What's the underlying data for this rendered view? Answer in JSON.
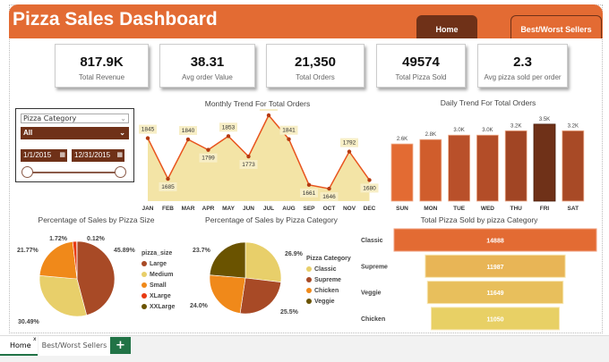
{
  "header": {
    "title": "Pizza Sales Dashboard",
    "tabs": [
      {
        "label": "Home",
        "active": true
      },
      {
        "label": "Best/Worst Sellers",
        "active": false
      }
    ]
  },
  "kpis": [
    {
      "value": "817.9K",
      "label": "Total Revenue"
    },
    {
      "value": "38.31",
      "label": "Avg order Value"
    },
    {
      "value": "21,350",
      "label": "Total Orders"
    },
    {
      "value": "49574",
      "label": "Total Pizza Sold"
    },
    {
      "value": "2.3",
      "label": "Avg pizza sold per order"
    }
  ],
  "slicer": {
    "title": "Pizza Category",
    "selected": "All",
    "start_date": "1/1/2015",
    "end_date": "12/31/2015"
  },
  "colors": {
    "brand": "#e36b33",
    "dark": "#6f3118",
    "large": "#a84a26",
    "medium": "#e8cf6a",
    "small": "#f0891a",
    "xlarge": "#e83a12",
    "xxlarge": "#6a5300",
    "area": "#f3e4a6",
    "line": "#e8541e"
  },
  "chart_data": [
    {
      "type": "line",
      "title": "Monthly Trend For Total Orders",
      "categories": [
        "JAN",
        "FEB",
        "MAR",
        "APR",
        "MAY",
        "JUN",
        "JUL",
        "AUG",
        "SEP",
        "OCT",
        "NOV",
        "DEC"
      ],
      "values": [
        1845,
        1685,
        1840,
        1799,
        1853,
        1773,
        1935,
        1841,
        1661,
        1646,
        1792,
        1680
      ]
    },
    {
      "type": "bar",
      "title": "Daily Trend For Total Orders",
      "categories": [
        "SUN",
        "MON",
        "TUE",
        "WED",
        "THU",
        "FRI",
        "SAT"
      ],
      "values": [
        2.6,
        2.8,
        3.0,
        3.0,
        3.2,
        3.5,
        3.2
      ],
      "labels": [
        "2.6K",
        "2.8K",
        "3.0K",
        "3.0K",
        "3.2K",
        "3.5K",
        "3.2K"
      ]
    },
    {
      "type": "pie",
      "title": "Percentage of Sales by Pizza Size",
      "legend_title": "pizza_size",
      "categories": [
        "Large",
        "Medium",
        "Small",
        "XLarge",
        "XXLarge"
      ],
      "values": [
        45.89,
        30.49,
        21.77,
        1.72,
        0.12
      ],
      "labels": [
        "45.89%",
        "30.49%",
        "21.77%",
        "1.72%",
        "0.12%"
      ]
    },
    {
      "type": "pie",
      "title": "Percentage of Sales by Pizza Category",
      "legend_title": "Pizza Category",
      "categories": [
        "Classic",
        "Supreme",
        "Chicken",
        "Veggie"
      ],
      "values": [
        26.9,
        25.5,
        24.0,
        23.7
      ],
      "labels": [
        "26.9%",
        "25.5%",
        "24.0%",
        "23.7%"
      ]
    },
    {
      "type": "bar",
      "orientation": "funnel",
      "title": "Total Pizza Sold by pizza Category",
      "categories": [
        "Classic",
        "Supreme",
        "Veggie",
        "Chicken"
      ],
      "values": [
        14888,
        11987,
        11649,
        11050
      ]
    }
  ],
  "bottom_tabs": [
    {
      "label": "Home",
      "close": "x"
    },
    {
      "label": "Best/Worst Sellers"
    }
  ],
  "add_tab": "+"
}
